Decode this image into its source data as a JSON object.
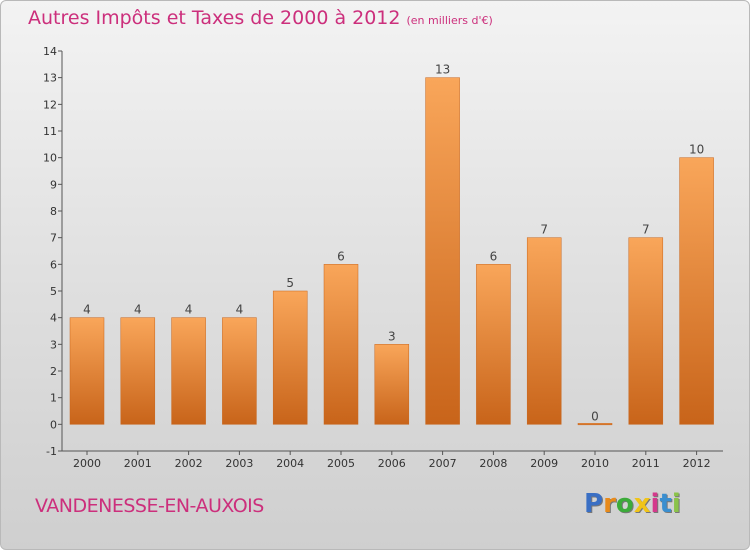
{
  "title": "Autres Impôts et Taxes de 2000 à 2012",
  "unit_note": "(en milliers d'€)",
  "commune": "VANDENESSE-EN-AUXOIS",
  "logo": {
    "letters": [
      "P",
      "r",
      "o",
      "x",
      "i",
      "t",
      "i"
    ],
    "colors": [
      "#3a6fc4",
      "#e88a1a",
      "#3cab3a",
      "#f0c419",
      "#d43a8c",
      "#3a8fd0",
      "#8bc34a"
    ]
  },
  "chart_data": {
    "type": "bar",
    "title": "Autres Impôts et Taxes de 2000 à 2012",
    "categories": [
      "2000",
      "2001",
      "2002",
      "2003",
      "2004",
      "2005",
      "2006",
      "2007",
      "2008",
      "2009",
      "2010",
      "2011",
      "2012"
    ],
    "values": [
      4,
      4,
      4,
      4,
      5,
      6,
      3,
      13,
      6,
      7,
      0,
      7,
      10
    ],
    "value_labels": [
      "4",
      "4",
      "4",
      "4",
      "5",
      "6",
      "3",
      "13",
      "6",
      "7",
      "0",
      "7",
      "10"
    ],
    "y_ticks": [
      "-1",
      "0",
      "1",
      "2",
      "3",
      "4",
      "5",
      "6",
      "7",
      "8",
      "9",
      "10",
      "11",
      "12",
      "13",
      "14"
    ],
    "ylim": [
      -1,
      14
    ],
    "grid": false,
    "bar_color": "#f08a2c",
    "title_color": "#cc2f7c"
  }
}
